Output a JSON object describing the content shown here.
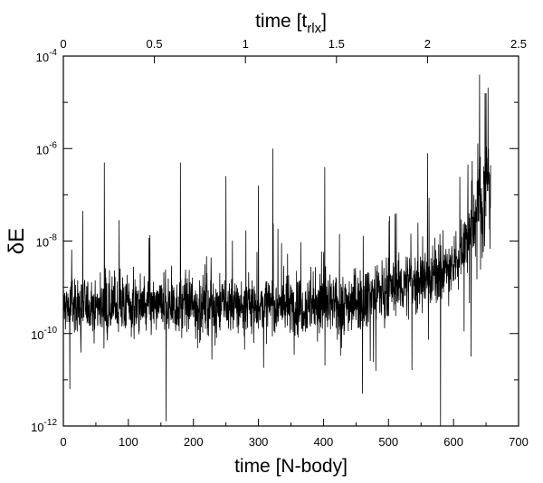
{
  "chart_data": {
    "type": "line",
    "title": "",
    "xlabel": "time [N-body]",
    "x2label": "time [t",
    "x2label_sub": "rlx",
    "x2label_close": "]",
    "ylabel": "δE",
    "xlim": [
      0,
      700
    ],
    "x2lim": [
      0,
      2.5
    ],
    "ylim_log10": [
      -12,
      -4
    ],
    "y_scale": "log",
    "grid": false,
    "x_ticks": [
      "0",
      "100",
      "200",
      "300",
      "400",
      "500",
      "600",
      "700"
    ],
    "x_tick_values": [
      0,
      100,
      200,
      300,
      400,
      500,
      600,
      700
    ],
    "x2_ticks": [
      "0",
      "0.5",
      "1",
      "1.5",
      "2",
      "2.5"
    ],
    "x2_tick_values": [
      0,
      0.5,
      1,
      1.5,
      2,
      2.5
    ],
    "y_ticks": [
      {
        "base": "10",
        "exp": "-4",
        "log10": -4
      },
      {
        "base": "10",
        "exp": "-6",
        "log10": -6
      },
      {
        "base": "10",
        "exp": "-8",
        "log10": -8
      },
      {
        "base": "10",
        "exp": "-10",
        "log10": -10
      },
      {
        "base": "10",
        "exp": "-12",
        "log10": -12
      }
    ],
    "series": [
      {
        "color": "#000000",
        "n_points": 2000,
        "x_range": [
          0,
          657
        ],
        "baseline_log10": -9.4,
        "spikes": [
          {
            "x": 63,
            "log10": -6.3
          },
          {
            "x": 180,
            "log10": -6.3
          },
          {
            "x": 250,
            "log10": -6.6
          },
          {
            "x": 300,
            "log10": -6.8
          },
          {
            "x": 322,
            "log10": -6.0
          },
          {
            "x": 402,
            "log10": -6.4
          },
          {
            "x": 560,
            "log10": -6.1
          },
          {
            "x": 640,
            "log10": -4.4
          },
          {
            "x": 650,
            "log10": -4.8
          }
        ],
        "dips": [
          {
            "x": 10,
            "log10": -11.2
          },
          {
            "x": 158,
            "log10": -11.9
          },
          {
            "x": 460,
            "log10": -11.3
          },
          {
            "x": 580,
            "log10": -12.0
          },
          {
            "x": 627,
            "log10": -10.5
          }
        ]
      }
    ]
  }
}
